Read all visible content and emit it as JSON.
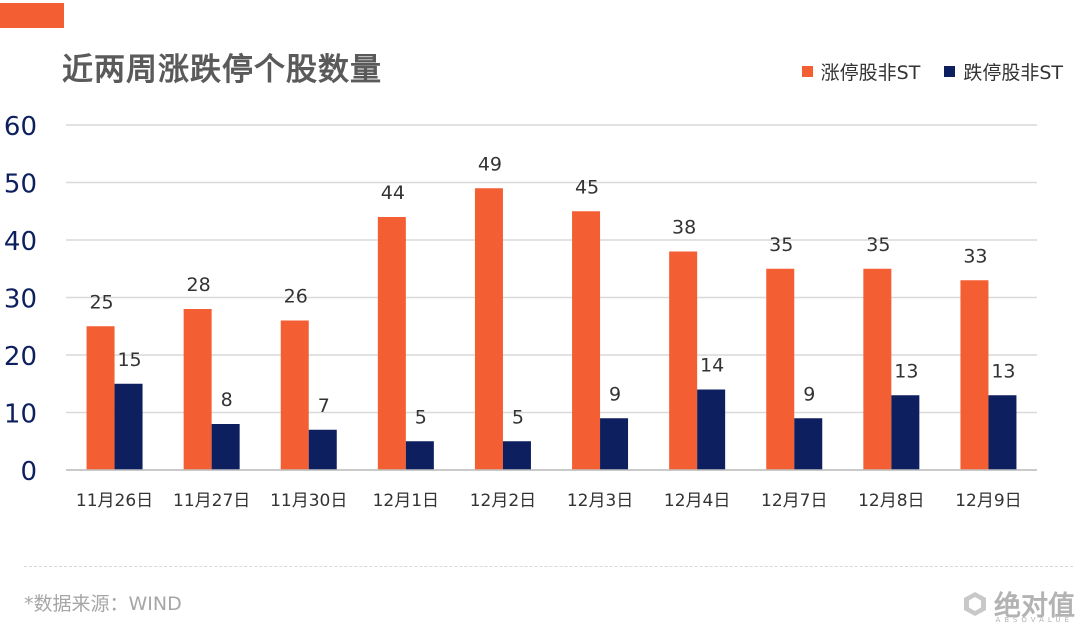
{
  "header": {
    "title": "近两周涨跌停个股数量"
  },
  "colors": {
    "accent": "#f45e33",
    "series_up": "#f45e33",
    "series_down": "#0d1f5e",
    "grid": "#d9d9d9"
  },
  "chart_data": {
    "type": "bar",
    "title": "近两周涨跌停个股数量",
    "categories": [
      "11月26日",
      "11月27日",
      "11月30日",
      "12月1日",
      "12月2日",
      "12月3日",
      "12月4日",
      "12月7日",
      "12月8日",
      "12月9日"
    ],
    "series": [
      {
        "name": "涨停股非ST",
        "values": [
          25,
          28,
          26,
          44,
          49,
          45,
          38,
          35,
          35,
          33
        ]
      },
      {
        "name": "跌停股非ST",
        "values": [
          15,
          8,
          7,
          5,
          5,
          9,
          14,
          9,
          13,
          13
        ]
      }
    ],
    "ylim": [
      0,
      60
    ],
    "yticks": [
      0,
      10,
      20,
      30,
      40,
      50,
      60
    ],
    "grid": true,
    "legend_position": "top-right",
    "xlabel": "",
    "ylabel": ""
  },
  "footer": {
    "source": "*数据来源：WIND"
  },
  "watermark": {
    "brand": "绝对值",
    "sub": "ABSOVALUE",
    "icon": "hexagon-logo-icon"
  }
}
